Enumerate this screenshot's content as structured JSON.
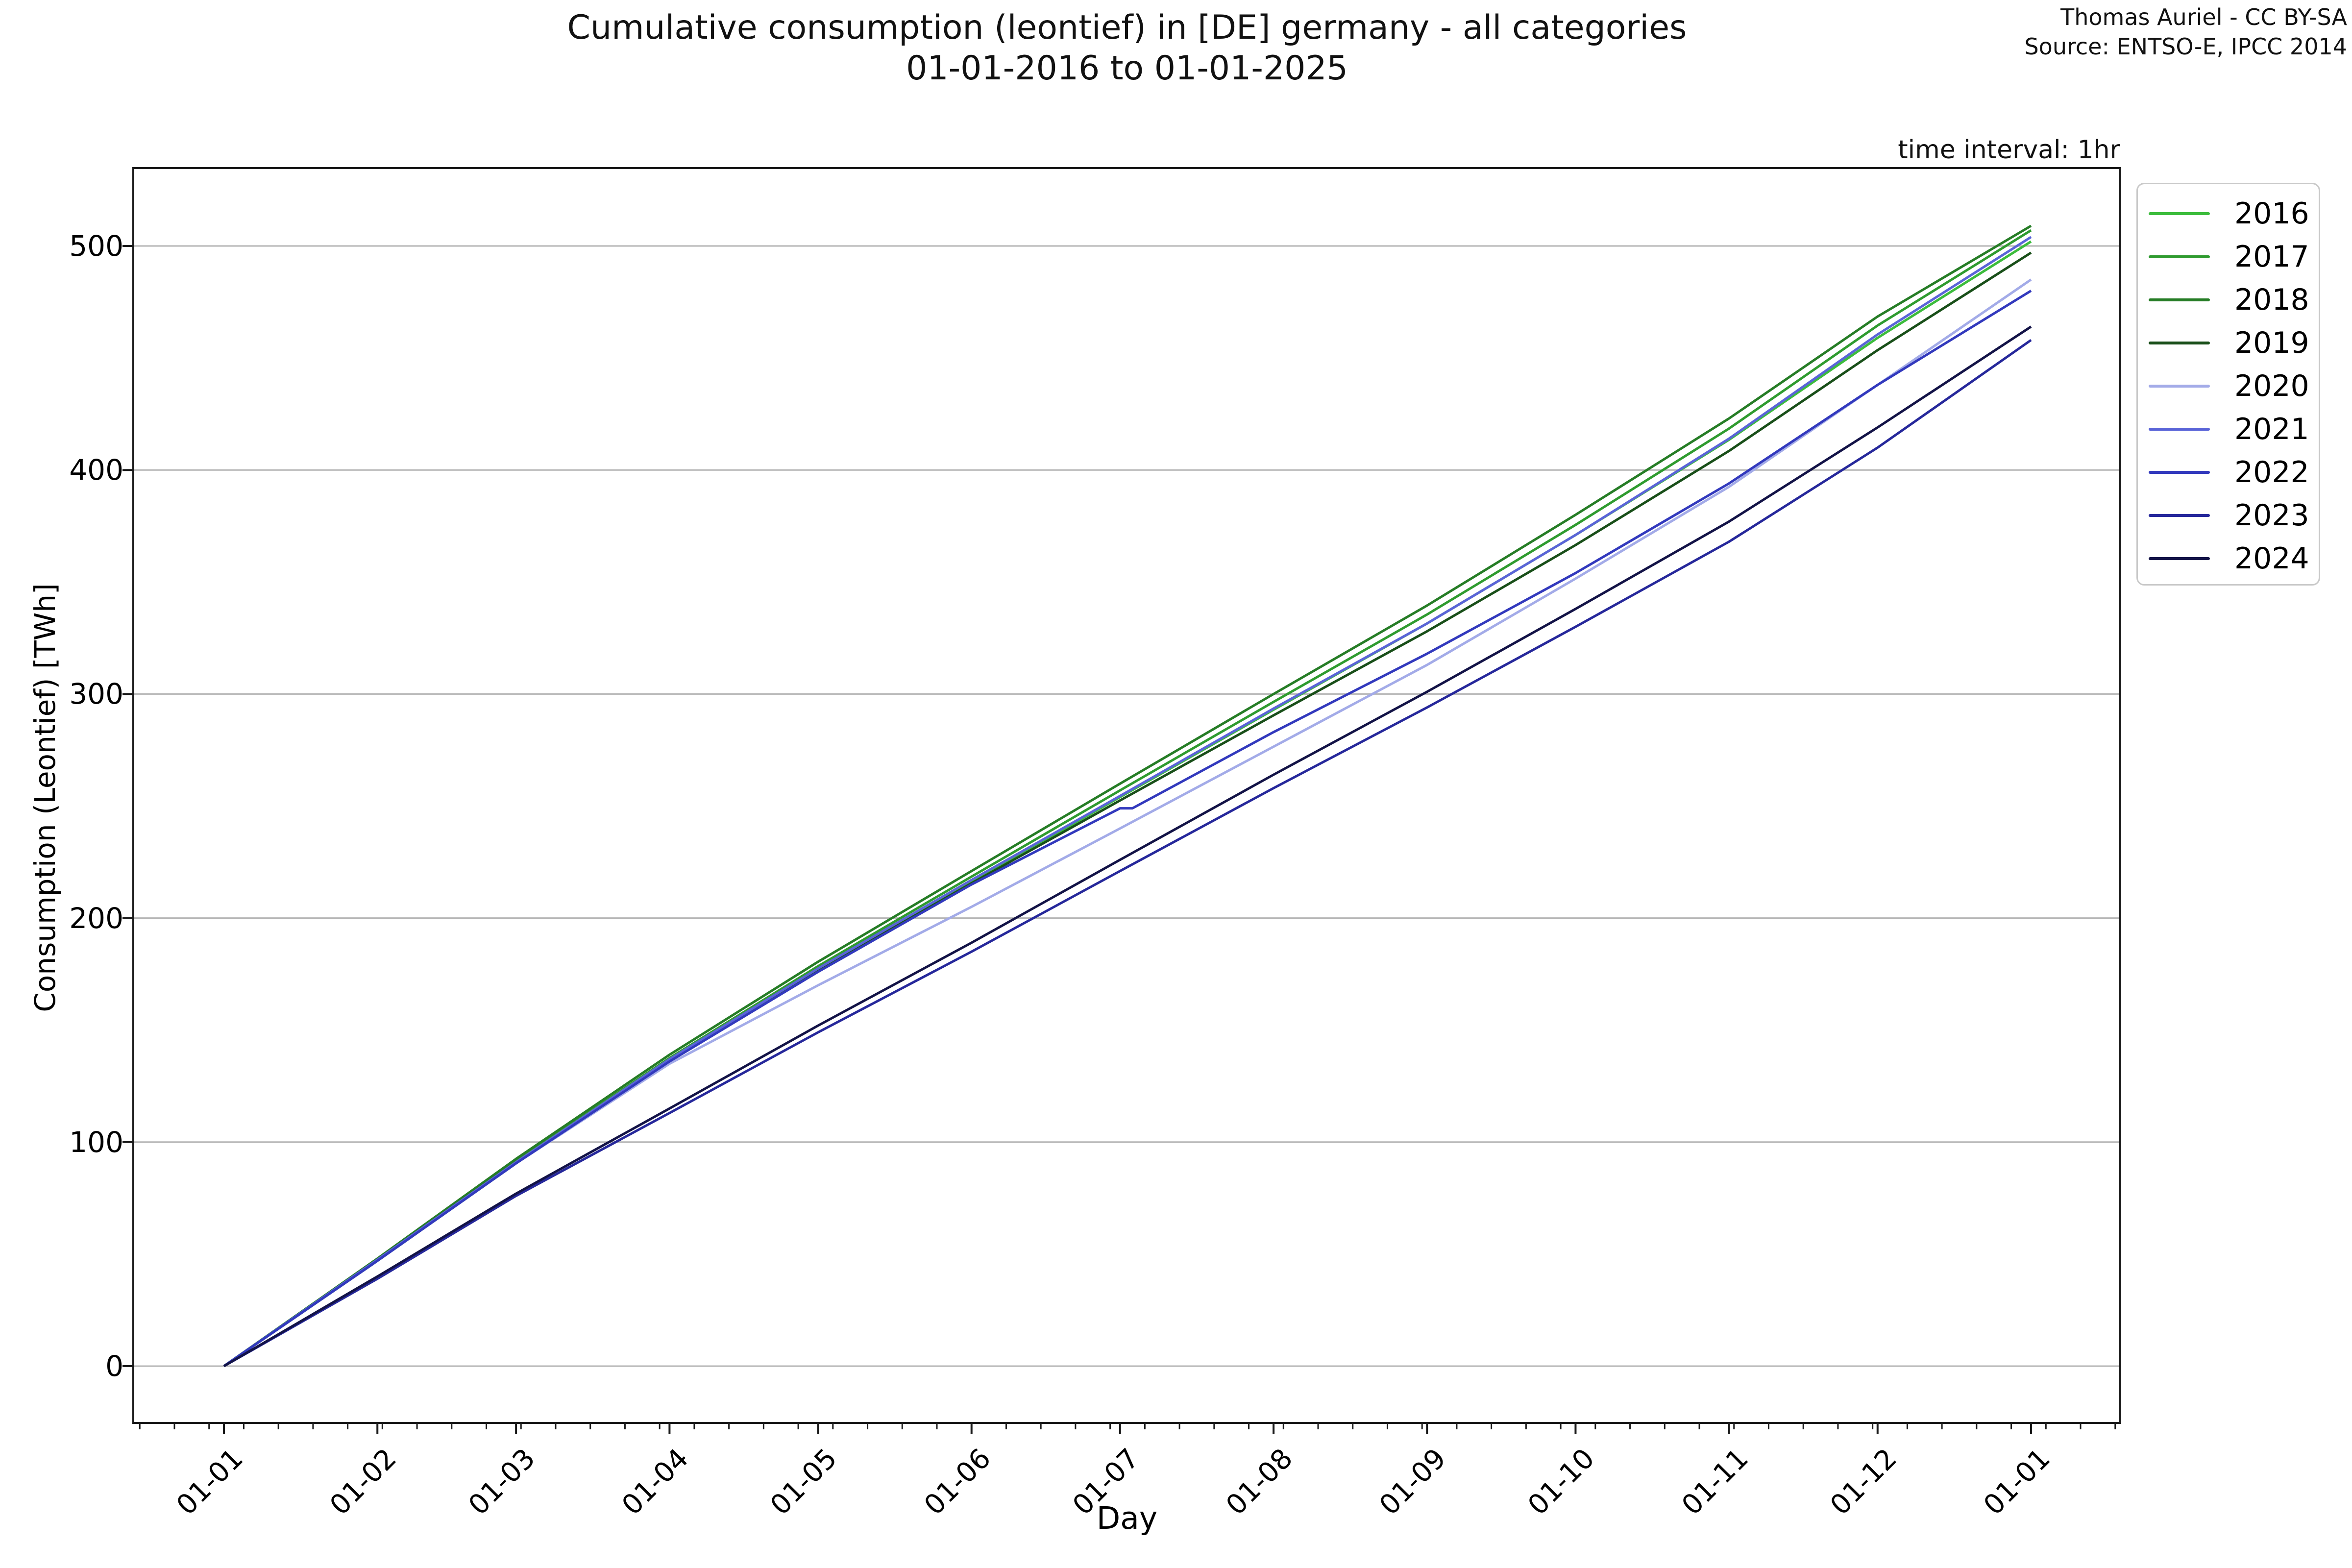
{
  "header": {
    "title": "Cumulative consumption (leontief) in [DE] germany - all categories",
    "subtitle": "01-01-2016 to 01-01-2025",
    "attribution_line1": "Thomas Auriel - CC BY-SA",
    "attribution_line2": "Source: ENTSO-E, IPCC 2014",
    "time_interval_note": "time interval: 1hr"
  },
  "chart_data": {
    "type": "line",
    "title": "Cumulative consumption (leontief) in [DE] germany - all categories",
    "subtitle": "01-01-2016 to 01-01-2025",
    "xlabel": "Day",
    "ylabel": "Consumption (Leontief) [TWh]",
    "grid": "horizontal-only",
    "background_color": "#ffffff",
    "grid_color": "#b5b5b5",
    "spine_color": "#1a1a1a",
    "legend_position": "outside-upper-right",
    "y_ticks": [
      0,
      100,
      200,
      300,
      400,
      500
    ],
    "y_tick_labels": [
      "0",
      "100",
      "200",
      "300",
      "400",
      "500"
    ],
    "ylim": [
      -25,
      535
    ],
    "x_tick_labels": [
      "01-01",
      "01-02",
      "01-03",
      "01-04",
      "01-05",
      "01-06",
      "01-07",
      "01-08",
      "01-09",
      "01-10",
      "01-11",
      "01-12",
      "01-01"
    ],
    "x_tick_days": [
      0,
      31,
      59,
      90,
      120,
      151,
      181,
      212,
      243,
      273,
      304,
      334,
      365
    ],
    "x_minor_ticks": {
      "start_day": -17,
      "step_days": 7,
      "count": 58
    },
    "x_days_lim": [
      -18,
      383
    ],
    "series": [
      {
        "name": "2016",
        "color": "#3cbc3c",
        "days": [
          0,
          31,
          59,
          90,
          120,
          151,
          181,
          212,
          243,
          273,
          304,
          334,
          365
        ],
        "values": [
          0,
          47,
          90.5,
          136,
          176.5,
          216,
          254,
          293,
          331.5,
          371,
          413.5,
          459,
          502
        ]
      },
      {
        "name": "2017",
        "color": "#2f9b2f",
        "days": [
          0,
          31,
          59,
          90,
          120,
          151,
          181,
          212,
          243,
          273,
          304,
          334,
          365
        ],
        "values": [
          0,
          47.5,
          91.5,
          137.5,
          178.5,
          218.5,
          257,
          296.5,
          335.5,
          375.5,
          418.5,
          464.5,
          507
        ]
      },
      {
        "name": "2018",
        "color": "#267d26",
        "days": [
          0,
          31,
          59,
          90,
          120,
          151,
          181,
          212,
          243,
          273,
          304,
          334,
          365
        ],
        "values": [
          0,
          48,
          92.5,
          139,
          180.5,
          221,
          260,
          300,
          339.5,
          380,
          423,
          468.5,
          509
        ]
      },
      {
        "name": "2019",
        "color": "#194f19",
        "days": [
          0,
          31,
          59,
          90,
          120,
          151,
          181,
          212,
          243,
          273,
          304,
          334,
          365
        ],
        "values": [
          0,
          47.5,
          91,
          136.5,
          176.5,
          215.5,
          252.5,
          290.5,
          328,
          366.5,
          408.5,
          453.5,
          497
        ]
      },
      {
        "name": "2020",
        "color": "#a3abe8",
        "days": [
          0,
          31,
          59,
          90,
          120,
          151,
          181,
          212,
          243,
          273,
          304,
          334,
          365
        ],
        "values": [
          0,
          47,
          90.5,
          135,
          170,
          205,
          240,
          276.5,
          313,
          351.5,
          392.5,
          438,
          485
        ]
      },
      {
        "name": "2021",
        "color": "#5a64d8",
        "days": [
          0,
          31,
          59,
          90,
          120,
          151,
          181,
          212,
          243,
          273,
          304,
          334,
          365
        ],
        "values": [
          0,
          47.5,
          91,
          137,
          177.5,
          217,
          254.5,
          293.5,
          331.5,
          371,
          414,
          460.5,
          504
        ]
      },
      {
        "name": "2022",
        "color": "#3239bd",
        "days": [
          0,
          31,
          59,
          90,
          120,
          151,
          181,
          183.5,
          212,
          243,
          273,
          304,
          334,
          365
        ],
        "values": [
          0,
          47,
          90.5,
          136,
          176,
          215,
          249,
          249,
          283,
          318,
          354,
          394,
          438,
          480
        ]
      },
      {
        "name": "2023",
        "color": "#26289b",
        "days": [
          0,
          31,
          59,
          90,
          120,
          151,
          181,
          212,
          243,
          273,
          304,
          334,
          365
        ],
        "values": [
          0,
          39,
          76,
          113,
          149,
          185,
          221,
          258,
          294,
          330,
          368,
          410,
          458
        ]
      },
      {
        "name": "2024",
        "color": "#131347",
        "days": [
          0,
          31,
          59,
          90,
          120,
          151,
          181,
          212,
          243,
          273,
          304,
          334,
          365
        ],
        "values": [
          0,
          40,
          77,
          115,
          152,
          189,
          226,
          264,
          301,
          338,
          377,
          419,
          464
        ]
      }
    ]
  }
}
